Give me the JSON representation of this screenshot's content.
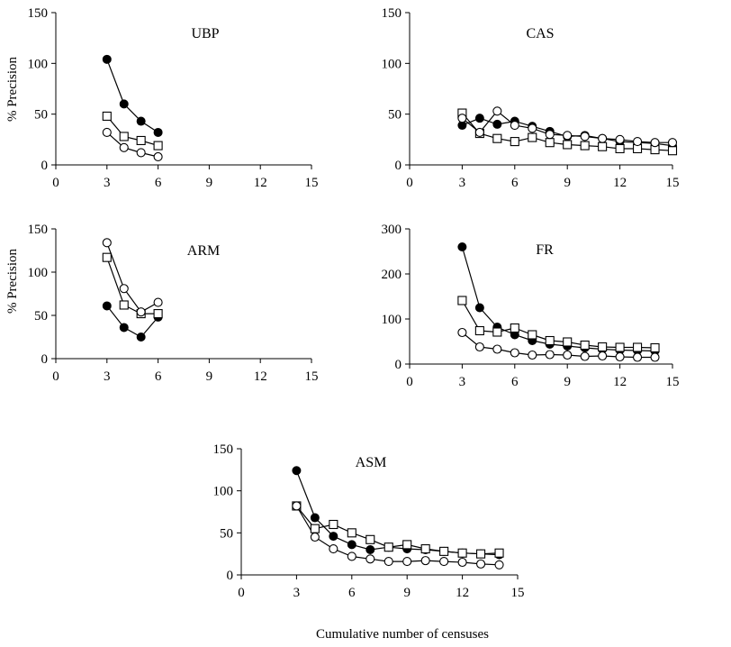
{
  "figure": {
    "xlabel": "Cumulative number of censuses",
    "ylabel": "% Precision"
  },
  "chart_data": [
    {
      "type": "line",
      "title": "UBP",
      "ylabel": "% Precision",
      "xlim": [
        0,
        15
      ],
      "ylim": [
        0,
        150
      ],
      "xticks": [
        0,
        3,
        6,
        9,
        12,
        15
      ],
      "yticks": [
        0,
        50,
        100,
        150
      ],
      "series": [
        {
          "marker": "filled-circle",
          "points": [
            [
              3,
              104
            ],
            [
              4,
              60
            ],
            [
              5,
              43
            ],
            [
              6,
              32
            ]
          ]
        },
        {
          "marker": "open-square",
          "points": [
            [
              3,
              48
            ],
            [
              4,
              28
            ],
            [
              5,
              24
            ],
            [
              6,
              19
            ]
          ]
        },
        {
          "marker": "open-circle",
          "points": [
            [
              3,
              32
            ],
            [
              4,
              17
            ],
            [
              5,
              12
            ],
            [
              6,
              8
            ]
          ]
        }
      ]
    },
    {
      "type": "line",
      "title": "CAS",
      "ylabel": "",
      "xlim": [
        0,
        15
      ],
      "ylim": [
        0,
        150
      ],
      "xticks": [
        0,
        3,
        6,
        9,
        12,
        15
      ],
      "yticks": [
        0,
        50,
        100,
        150
      ],
      "series": [
        {
          "marker": "filled-circle",
          "points": [
            [
              3,
              39
            ],
            [
              4,
              46
            ],
            [
              5,
              40
            ],
            [
              6,
              43
            ],
            [
              7,
              38
            ],
            [
              8,
              33
            ],
            [
              9,
              28
            ],
            [
              10,
              29
            ],
            [
              11,
              26
            ],
            [
              12,
              23
            ],
            [
              13,
              22
            ],
            [
              14,
              21
            ],
            [
              15,
              19
            ]
          ]
        },
        {
          "marker": "open-square",
          "points": [
            [
              3,
              51
            ],
            [
              4,
              31
            ],
            [
              5,
              26
            ],
            [
              6,
              23
            ],
            [
              7,
              27
            ],
            [
              8,
              22
            ],
            [
              9,
              20
            ],
            [
              10,
              19
            ],
            [
              11,
              18
            ],
            [
              12,
              16
            ],
            [
              13,
              16
            ],
            [
              14,
              15
            ],
            [
              15,
              14
            ]
          ]
        },
        {
          "marker": "open-circle",
          "points": [
            [
              3,
              46
            ],
            [
              4,
              32
            ],
            [
              5,
              53
            ],
            [
              6,
              39
            ],
            [
              7,
              36
            ],
            [
              8,
              30
            ],
            [
              9,
              29
            ],
            [
              10,
              28
            ],
            [
              11,
              26
            ],
            [
              12,
              25
            ],
            [
              13,
              23
            ],
            [
              14,
              22
            ],
            [
              15,
              22
            ]
          ]
        }
      ]
    },
    {
      "type": "line",
      "title": "ARM",
      "ylabel": "% Precision",
      "xlim": [
        0,
        15
      ],
      "ylim": [
        0,
        150
      ],
      "xticks": [
        0,
        3,
        6,
        9,
        12,
        15
      ],
      "yticks": [
        0,
        50,
        100,
        150
      ],
      "series": [
        {
          "marker": "filled-circle",
          "points": [
            [
              3,
              61
            ],
            [
              4,
              36
            ],
            [
              5,
              25
            ],
            [
              6,
              48
            ]
          ]
        },
        {
          "marker": "open-square",
          "points": [
            [
              3,
              117
            ],
            [
              4,
              62
            ],
            [
              5,
              52
            ],
            [
              6,
              52
            ]
          ]
        },
        {
          "marker": "open-circle",
          "points": [
            [
              3,
              134
            ],
            [
              4,
              81
            ],
            [
              5,
              54
            ],
            [
              6,
              65
            ]
          ]
        }
      ]
    },
    {
      "type": "line",
      "title": "FR",
      "ylabel": "",
      "xlim": [
        0,
        15
      ],
      "ylim": [
        0,
        300
      ],
      "xticks": [
        0,
        3,
        6,
        9,
        12,
        15
      ],
      "yticks": [
        0,
        100,
        200,
        300
      ],
      "series": [
        {
          "marker": "filled-circle",
          "points": [
            [
              3,
              260
            ],
            [
              4,
              125
            ],
            [
              5,
              82
            ],
            [
              6,
              65
            ],
            [
              7,
              52
            ],
            [
              8,
              44
            ],
            [
              9,
              40
            ],
            [
              10,
              36
            ],
            [
              11,
              33
            ],
            [
              12,
              31
            ],
            [
              13,
              30
            ],
            [
              14,
              29
            ]
          ]
        },
        {
          "marker": "open-square",
          "points": [
            [
              3,
              141
            ],
            [
              4,
              74
            ],
            [
              5,
              71
            ],
            [
              6,
              80
            ],
            [
              7,
              65
            ],
            [
              8,
              52
            ],
            [
              9,
              49
            ],
            [
              10,
              42
            ],
            [
              11,
              38
            ],
            [
              12,
              37
            ],
            [
              13,
              37
            ],
            [
              14,
              36
            ]
          ]
        },
        {
          "marker": "open-circle",
          "points": [
            [
              3,
              70
            ],
            [
              4,
              38
            ],
            [
              5,
              33
            ],
            [
              6,
              25
            ],
            [
              7,
              20
            ],
            [
              8,
              21
            ],
            [
              9,
              20
            ],
            [
              10,
              17
            ],
            [
              11,
              18
            ],
            [
              12,
              16
            ],
            [
              13,
              15
            ],
            [
              14,
              15
            ]
          ]
        }
      ]
    },
    {
      "type": "line",
      "title": "ASM",
      "ylabel": "",
      "xlim": [
        0,
        15
      ],
      "ylim": [
        0,
        150
      ],
      "xticks": [
        0,
        3,
        6,
        9,
        12,
        15
      ],
      "yticks": [
        0,
        50,
        100,
        150
      ],
      "series": [
        {
          "marker": "filled-circle",
          "points": [
            [
              3,
              124
            ],
            [
              4,
              68
            ],
            [
              5,
              46
            ],
            [
              6,
              36
            ],
            [
              7,
              30
            ],
            [
              8,
              33
            ],
            [
              9,
              31
            ],
            [
              10,
              30
            ],
            [
              11,
              28
            ],
            [
              12,
              26
            ],
            [
              13,
              25
            ],
            [
              14,
              24
            ]
          ]
        },
        {
          "marker": "open-square",
          "points": [
            [
              3,
              82
            ],
            [
              4,
              55
            ],
            [
              5,
              60
            ],
            [
              6,
              50
            ],
            [
              7,
              42
            ],
            [
              8,
              33
            ],
            [
              9,
              36
            ],
            [
              10,
              31
            ],
            [
              11,
              28
            ],
            [
              12,
              26
            ],
            [
              13,
              25
            ],
            [
              14,
              26
            ]
          ]
        },
        {
          "marker": "open-circle",
          "points": [
            [
              3,
              82
            ],
            [
              4,
              45
            ],
            [
              5,
              31
            ],
            [
              6,
              22
            ],
            [
              7,
              19
            ],
            [
              8,
              16
            ],
            [
              9,
              16
            ],
            [
              10,
              17
            ],
            [
              11,
              16
            ],
            [
              12,
              15
            ],
            [
              13,
              13
            ],
            [
              14,
              12
            ]
          ]
        }
      ]
    }
  ]
}
